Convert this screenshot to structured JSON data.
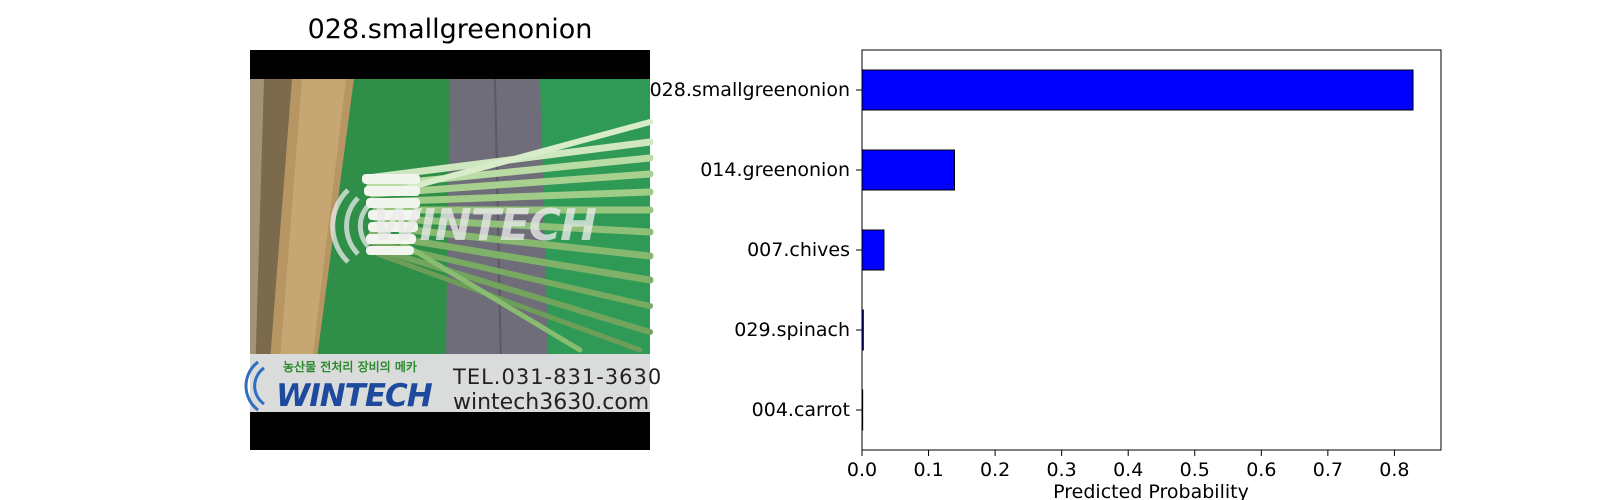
{
  "image_panel": {
    "title": "028.smallgreenonion",
    "banner": {
      "korean_slogan": "농산물 전처리 장비의 메카",
      "brand": "WINTECH",
      "phone": "TEL.031-831-3630",
      "website": "wintech3630.com"
    },
    "watermark": "WINTECH"
  },
  "chart_data": {
    "type": "bar",
    "orientation": "horizontal",
    "categories": [
      "028.smallgreenonion",
      "014.greenonion",
      "007.chives",
      "029.spinach",
      "004.carrot"
    ],
    "values": [
      0.828,
      0.139,
      0.033,
      0.002,
      0.001
    ],
    "xlabel": "Predicted Probability",
    "ylabel": "",
    "xlim": [
      0,
      0.87
    ],
    "xticks": [
      "0.0",
      "0.1",
      "0.2",
      "0.3",
      "0.4",
      "0.5",
      "0.6",
      "0.7",
      "0.8"
    ],
    "grid": false,
    "bar_color": "#0000ff",
    "edge_color": "#000000"
  }
}
